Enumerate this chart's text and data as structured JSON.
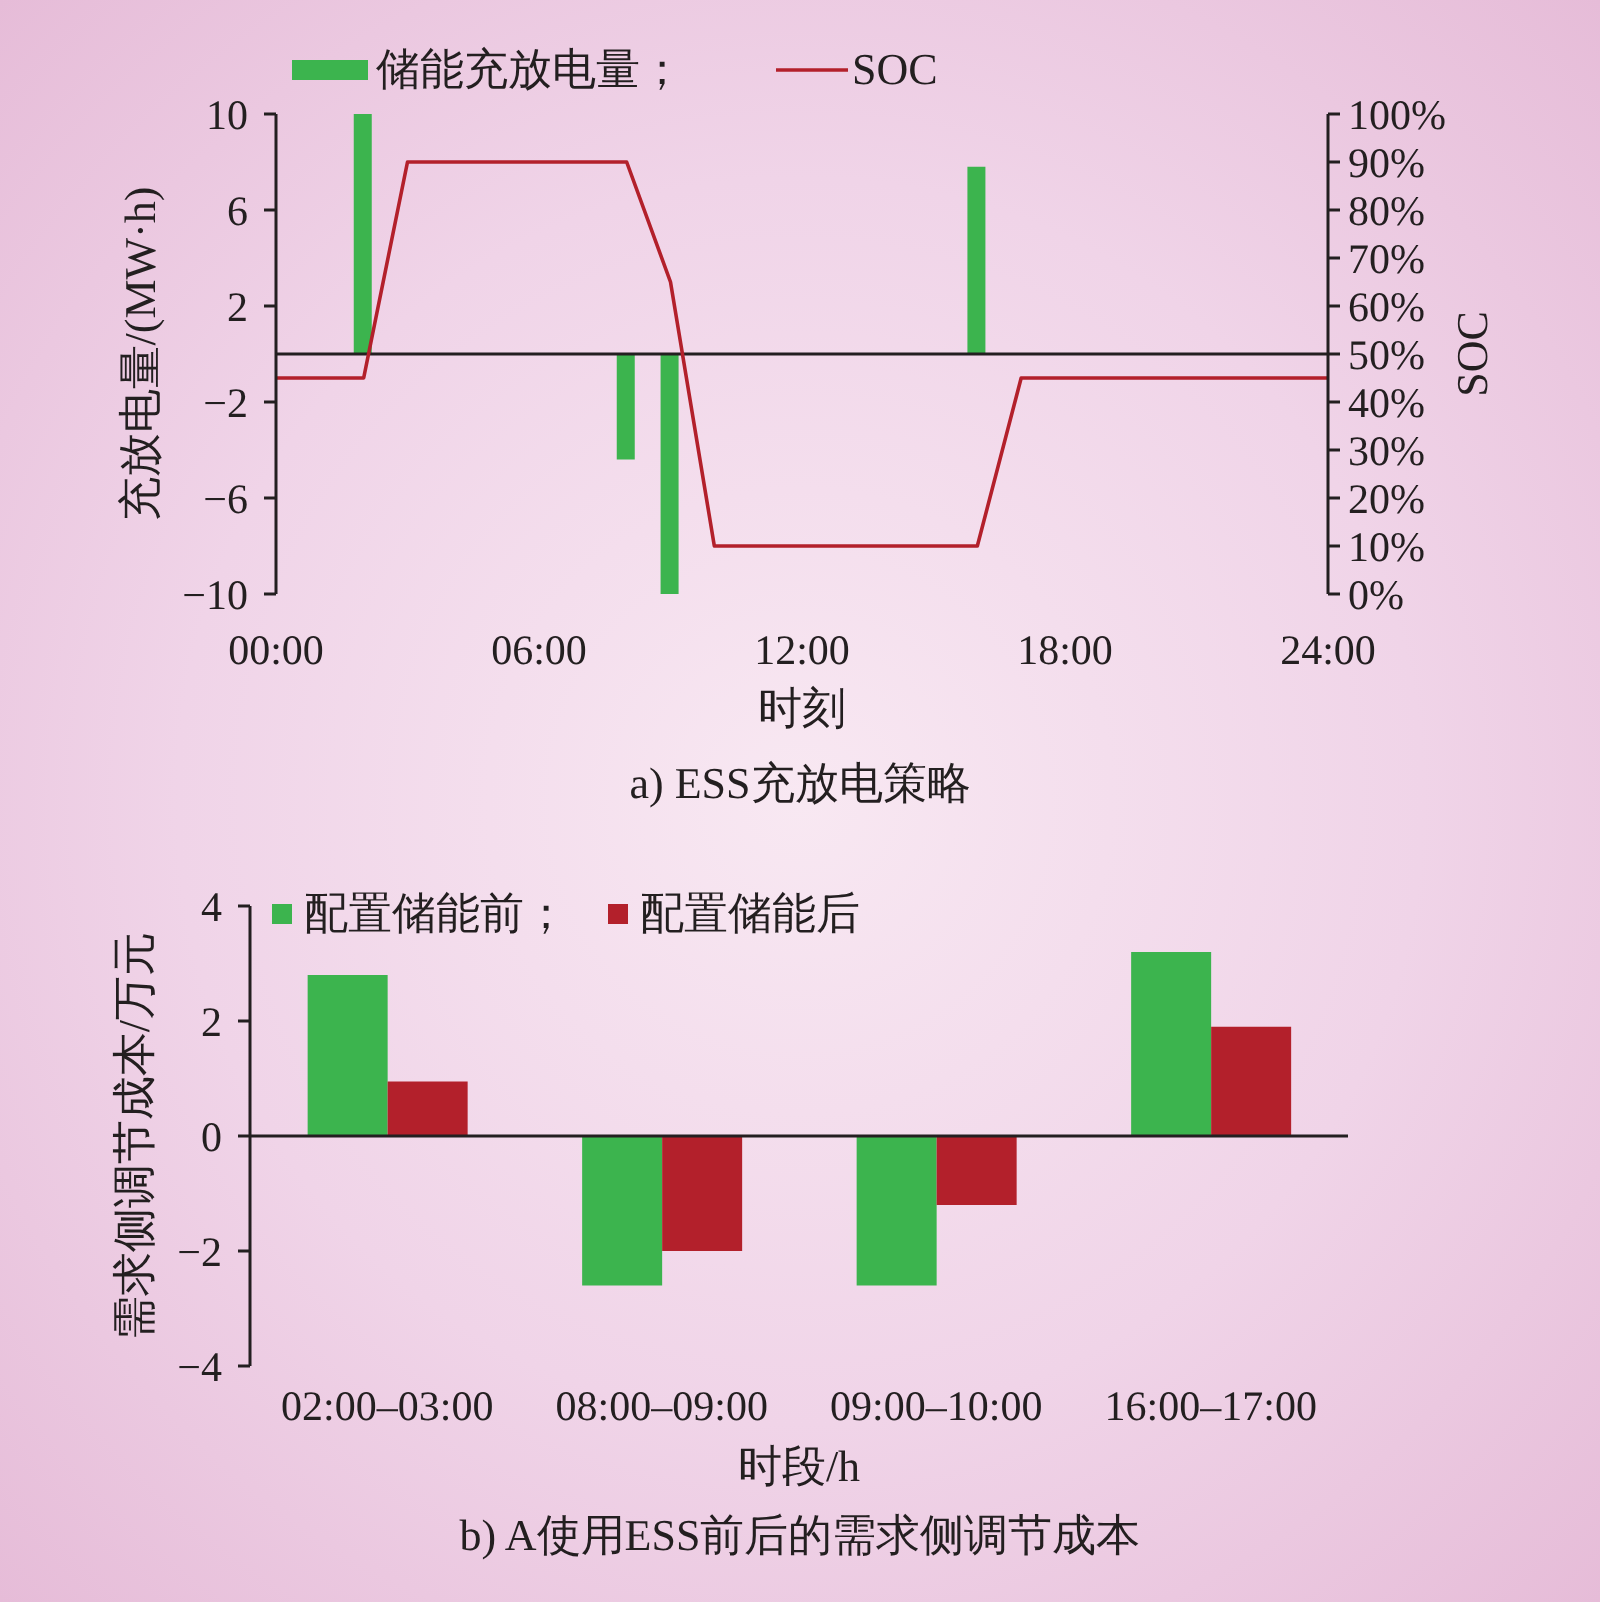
{
  "chart_data": [
    {
      "type": "bar",
      "title": "a) ESS充放电策略",
      "xlabel": "时刻",
      "ylabel": "充放电量/(MW·h)",
      "y2label": "SOC",
      "series": [
        {
          "name": "储能充放电量；",
          "type": "bar",
          "color": "#3cb44e",
          "x": [
            2,
            8,
            9,
            16
          ],
          "values": [
            10,
            -4.4,
            -10,
            7.8
          ]
        },
        {
          "name": "SOC",
          "type": "line",
          "axis": "y2",
          "color": "#b3202b",
          "x": [
            0,
            2,
            3,
            8,
            9,
            10,
            16,
            17,
            24
          ],
          "values": [
            45,
            45,
            90,
            90,
            65,
            10,
            10,
            45,
            45
          ]
        }
      ],
      "xlim": [
        0,
        24
      ],
      "xticks": [
        {
          "value": 0,
          "label": "00:00"
        },
        {
          "value": 6,
          "label": "06:00"
        },
        {
          "value": 12,
          "label": "12:00"
        },
        {
          "value": 18,
          "label": "18:00"
        },
        {
          "value": 24,
          "label": "24:00"
        }
      ],
      "ylim": [
        -10,
        10
      ],
      "yticks": [
        {
          "value": -10,
          "label": "−10"
        },
        {
          "value": -6,
          "label": "−6"
        },
        {
          "value": -2,
          "label": "−2"
        },
        2,
        6,
        10
      ],
      "y2lim": [
        0,
        100
      ],
      "y2ticks": [
        {
          "value": 0,
          "label": "0%"
        },
        {
          "value": 10,
          "label": "10%"
        },
        {
          "value": 20,
          "label": "20%"
        },
        {
          "value": 30,
          "label": "30%"
        },
        {
          "value": 40,
          "label": "40%"
        },
        {
          "value": 50,
          "label": "50%"
        },
        {
          "value": 60,
          "label": "60%"
        },
        {
          "value": 70,
          "label": "70%"
        },
        {
          "value": 80,
          "label": "80%"
        },
        {
          "value": 90,
          "label": "90%"
        },
        {
          "value": 100,
          "label": "100%"
        }
      ],
      "legend": "top",
      "marker": "none",
      "line_style": "solid"
    },
    {
      "type": "bar",
      "title": "b) A使用ESS前后的需求侧调节成本",
      "xlabel": "时段/h",
      "ylabel": "需求侧调节成本/万元",
      "categories": [
        "02:00–03:00",
        "08:00–09:00",
        "09:00–10:00",
        "16:00–17:00"
      ],
      "series": [
        {
          "name": "配置储能前；",
          "color": "#3cb44e",
          "values": [
            2.8,
            -2.6,
            -2.6,
            3.2
          ]
        },
        {
          "name": "配置储能后",
          "color": "#b3202b",
          "values": [
            0.95,
            -2,
            -1.2,
            1.9
          ]
        }
      ],
      "ylim": [
        -4,
        4
      ],
      "yticks": [
        {
          "value": -4,
          "label": "−4"
        },
        {
          "value": -2,
          "label": "−2"
        },
        0,
        2,
        4
      ],
      "legend": "top left"
    }
  ]
}
